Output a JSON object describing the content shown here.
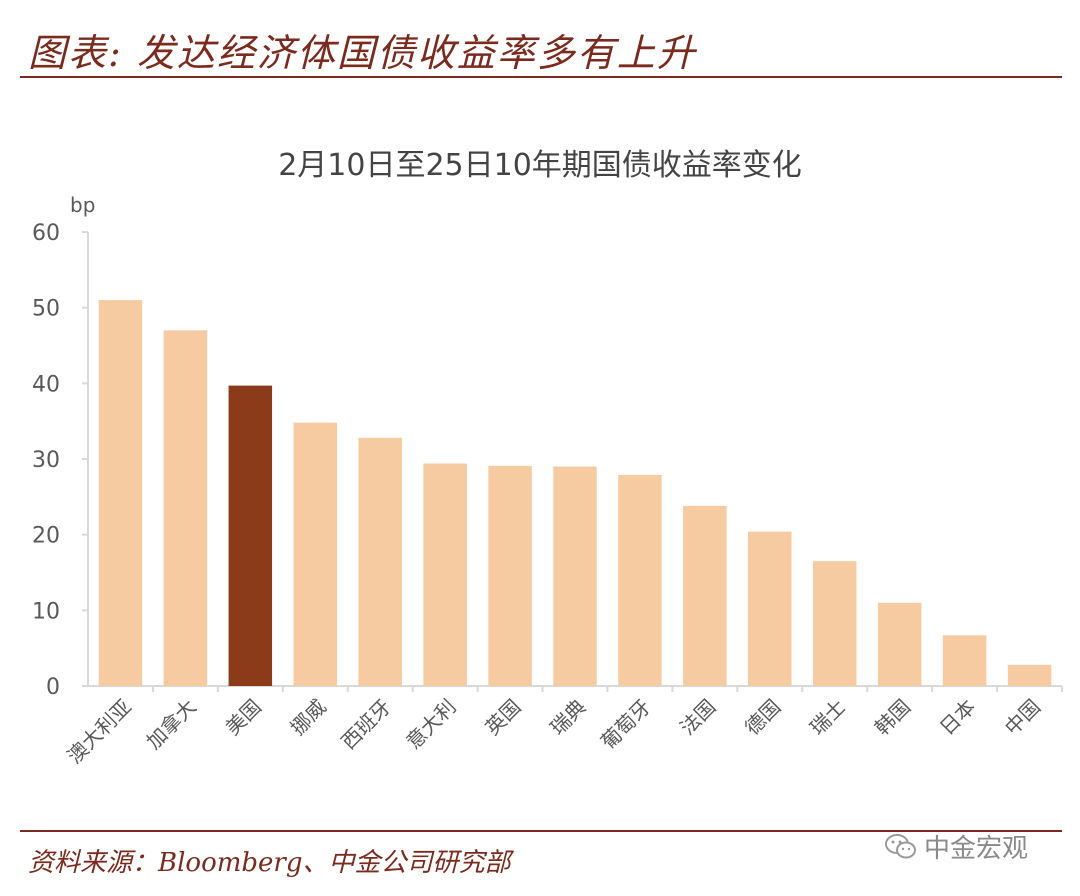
{
  "header": {
    "title": "图表: 发达经济体国债收益率多有上升"
  },
  "footer": {
    "source": "资料来源：Bloomberg、中金公司研究部",
    "watermark": "中金宏观",
    "watermark_icon": "wechat-icon"
  },
  "colors": {
    "brand": "#7b2b1e",
    "bar": "#f6cba1",
    "bar_highlight": "#8b3a1a",
    "axis": "#d9d9d9",
    "tick_text": "#595959"
  },
  "chart_data": {
    "type": "bar",
    "title": "2月10日至25日10年期国债收益率变化",
    "ylabel": "bp",
    "xlabel": "",
    "ylim": [
      0,
      60
    ],
    "yticks": [
      0,
      10,
      20,
      30,
      40,
      50,
      60
    ],
    "grid": false,
    "categories": [
      "澳大利亚",
      "加拿大",
      "美国",
      "挪威",
      "西班牙",
      "意大利",
      "英国",
      "瑞典",
      "葡萄牙",
      "法国",
      "德国",
      "瑞士",
      "韩国",
      "日本",
      "中国"
    ],
    "values": [
      51,
      47,
      39.7,
      34.8,
      32.8,
      29.4,
      29.1,
      29.0,
      27.9,
      23.8,
      20.4,
      16.5,
      11.0,
      6.7,
      2.8
    ],
    "highlight_category": "美国"
  }
}
